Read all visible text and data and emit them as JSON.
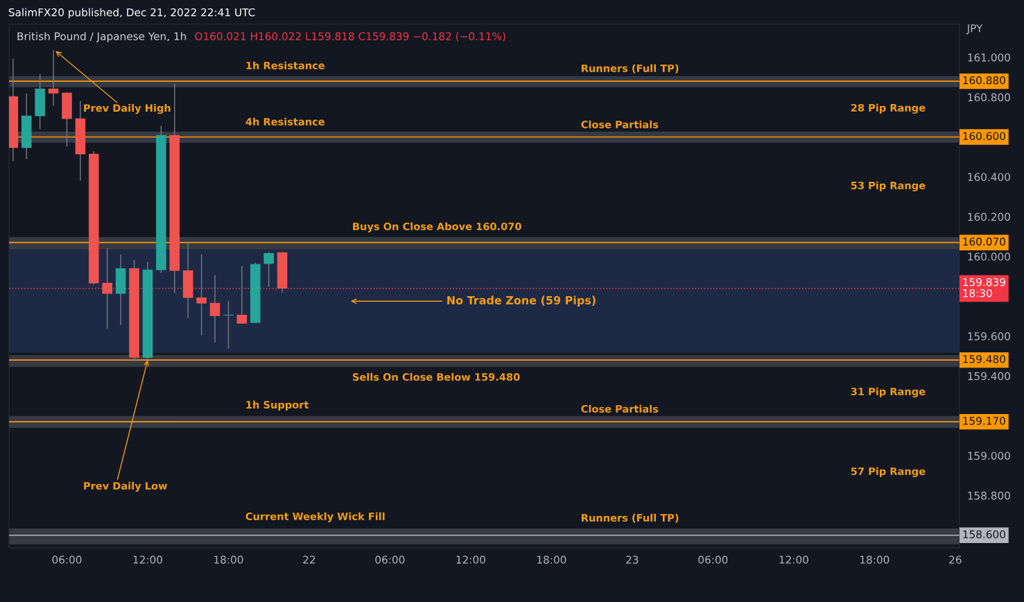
{
  "chart_data": {
    "type": "candlestick",
    "title": "British Pound / Japanese Yen, 1h",
    "subtitle": "O160.021 H160.022 L159.818 C159.839 −0.182 (−0.11%)",
    "ylabel": "JPY",
    "categories": [
      null,
      null,
      null,
      null,
      "06:00",
      null,
      null,
      null,
      null,
      null,
      "12:00",
      null,
      null,
      null,
      null,
      null,
      "18:00",
      null,
      null,
      null,
      null,
      null,
      "22",
      null,
      null,
      null,
      null,
      null,
      "06:00",
      null,
      null,
      null,
      null,
      null,
      "12:00",
      null,
      null,
      null,
      null,
      null,
      "18:00",
      null,
      null,
      null,
      null,
      null,
      "23",
      null,
      null,
      null,
      null,
      null,
      "06:00",
      null,
      null,
      null,
      null,
      null,
      "12:00",
      null,
      null,
      null,
      null,
      null,
      "18:00",
      null,
      null,
      null,
      null,
      null,
      "26"
    ],
    "ohlc": [
      [
        160.805,
        160.993,
        160.478,
        160.545
      ],
      [
        160.545,
        160.819,
        160.489,
        160.707
      ],
      [
        160.705,
        160.916,
        160.639,
        160.843
      ],
      [
        160.843,
        161.036,
        160.757,
        160.819
      ],
      [
        160.822,
        160.826,
        160.552,
        160.691
      ],
      [
        160.693,
        160.78,
        160.381,
        160.513
      ],
      [
        160.516,
        160.528,
        159.858,
        159.865
      ],
      [
        159.868,
        160.042,
        159.639,
        159.813
      ],
      [
        159.813,
        160.01,
        159.656,
        159.941
      ],
      [
        159.941,
        159.983,
        159.475,
        159.492
      ],
      [
        159.492,
        159.972,
        159.48,
        159.934
      ],
      [
        159.931,
        160.657,
        159.917,
        160.61
      ],
      [
        160.61,
        160.867,
        159.816,
        159.928
      ],
      [
        159.93,
        160.07,
        159.691,
        159.792
      ],
      [
        159.794,
        160.01,
        159.604,
        159.764
      ],
      [
        159.767,
        159.906,
        159.569,
        159.701
      ],
      [
        159.704,
        159.777,
        159.538,
        159.707
      ],
      [
        159.707,
        159.951,
        159.663,
        159.663
      ],
      [
        159.667,
        159.969,
        159.667,
        159.962
      ],
      [
        159.963,
        160.021,
        159.848,
        160.017
      ],
      [
        160.021,
        160.022,
        159.818,
        159.839
      ],
      null,
      null,
      null,
      null,
      null,
      null,
      null,
      null,
      null,
      null,
      null,
      null,
      null,
      null,
      null,
      null,
      null,
      null,
      null,
      null,
      null,
      null,
      null,
      null,
      null,
      null,
      null,
      null,
      null,
      null,
      null,
      null,
      null,
      null,
      null,
      null,
      null,
      null,
      null,
      null,
      null,
      null,
      null,
      null,
      null,
      null,
      null,
      null,
      null,
      null
    ],
    "colors": [
      "#ef5350",
      "#26a69a",
      "#26a69a",
      "#ef5350",
      "#ef5350",
      "#ef5350",
      "#ef5350",
      "#ef5350",
      "#26a69a",
      "#ef5350",
      "#26a69a",
      "#26a69a",
      "#ef5350",
      "#ef5350",
      "#ef5350",
      "#ef5350",
      "#26a69a",
      "#ef5350",
      "#26a69a",
      "#26a69a",
      "#ef5350",
      null,
      null,
      null,
      null,
      null,
      null,
      null,
      null,
      null,
      null,
      null,
      null,
      null,
      null,
      null,
      null,
      null,
      null,
      null,
      null,
      null,
      null,
      null,
      null,
      null,
      null,
      null,
      null,
      null,
      null,
      null,
      null,
      null,
      null,
      null,
      null,
      null,
      null,
      null,
      null,
      null,
      null,
      null,
      null,
      null,
      null,
      null,
      null,
      null,
      null
    ],
    "ylim": [
      158.537,
      161.167
    ],
    "yticks": [
      {
        "value": 158.8,
        "label": "158.800"
      },
      {
        "value": 159.0,
        "label": "159.000"
      },
      {
        "value": 159.4,
        "label": "159.400"
      },
      {
        "value": 159.6,
        "label": "159.600"
      },
      {
        "value": 160.0,
        "label": "160.000"
      },
      {
        "value": 160.2,
        "label": "160.200"
      },
      {
        "value": 160.4,
        "label": "160.400"
      },
      {
        "value": 160.8,
        "label": "160.800"
      },
      {
        "value": 161.0,
        "label": "161.000"
      }
    ],
    "bands": [
      {
        "axis": "y",
        "from": 160.85,
        "to": 160.906,
        "color": "#363a45"
      },
      {
        "axis": "y",
        "from": 160.571,
        "to": 160.627,
        "color": "#363a45"
      },
      {
        "axis": "y",
        "from": 160.035,
        "to": 160.098,
        "color": "#363a45"
      },
      {
        "axis": "y",
        "from": 159.446,
        "to": 159.505,
        "color": "#363a45"
      },
      {
        "axis": "y",
        "from": 159.139,
        "to": 159.199,
        "color": "#363a45"
      },
      {
        "axis": "y",
        "from": 158.554,
        "to": 158.634,
        "color": "#363a45"
      },
      {
        "axis": "y",
        "from": 159.516,
        "to": 160.035,
        "color": "#1e2a45",
        "label": "No Trade Zone (59 Pips)"
      }
    ],
    "ref_lines": [
      {
        "axis": "y",
        "value": 160.88,
        "label": "160.880",
        "color": "#ff9800"
      },
      {
        "axis": "y",
        "value": 160.6,
        "label": "160.600",
        "color": "#ff9800"
      },
      {
        "axis": "y",
        "value": 160.07,
        "label": "160.070",
        "color": "#ff9800"
      },
      {
        "axis": "y",
        "value": 159.48,
        "label": "159.480",
        "color": "#ff9800"
      },
      {
        "axis": "y",
        "value": 159.17,
        "label": "159.170",
        "color": "#ff9800"
      },
      {
        "axis": "y",
        "value": 158.6,
        "label": "158.600",
        "color": "#b2b5be"
      },
      {
        "axis": "y",
        "value": 159.839,
        "label": "159.839\n18:30",
        "color": "#f23645",
        "line_style": "dotted"
      }
    ],
    "annotations": [
      "SalimFX20 published, Dec 21, 2022 22:41 UTC",
      "1h Resistance",
      "Runners (Full TP)",
      "Prev Daily High",
      "28 Pip Range",
      "4h Resistance",
      "Close Partials",
      "53 Pip Range",
      "Buys On Close Above 160.070",
      "Sells On Close Below 159.480",
      "31 Pip Range",
      "1h Support",
      "Close Partials",
      {
        "text": "Prev Daily Low",
        "x": "12:00",
        "y": 159.48
      },
      "57 Pip Range",
      "Current Weekly Wick Fill",
      "Runners (Full TP)"
    ]
  }
}
